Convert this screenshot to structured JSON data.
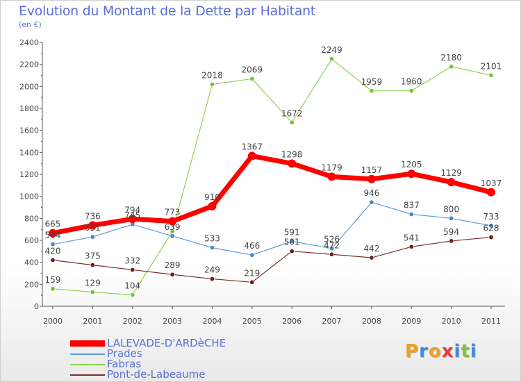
{
  "header": {
    "title": "Evolution du Montant de la Dette par Habitant",
    "unit": "(en €)"
  },
  "logo": {
    "text": "Proxiti",
    "colors": [
      "#f0a020",
      "#3a8fd8",
      "#f0a020",
      "#e83a3a",
      "#3a8fd8",
      "#88c040",
      "#3a8fd8"
    ]
  },
  "chart_data": {
    "type": "line",
    "title": "Evolution du Montant de la Dette par Habitant",
    "subtitle": "(en €)",
    "xlabel": "",
    "ylabel": "",
    "x": [
      "2000",
      "2001",
      "2002",
      "2003",
      "2004",
      "2005",
      "2006",
      "2007",
      "2008",
      "2009",
      "2010",
      "2011"
    ],
    "ylim": [
      0,
      2400
    ],
    "yticks": [
      0,
      200,
      400,
      600,
      800,
      1000,
      1200,
      1400,
      1600,
      1800,
      2000,
      2200,
      2400
    ],
    "grid": false,
    "legend_position": "bottom-left",
    "series": [
      {
        "name": "LALEVADE-D'ARDèCHE",
        "color": "#ff0000",
        "values": [
          665,
          736,
          794,
          773,
          910,
          1367,
          1298,
          1179,
          1157,
          1205,
          1129,
          1037
        ],
        "labels": [
          "665",
          "736",
          "794",
          "773",
          "910",
          "1367",
          "1298",
          "1179",
          "1157",
          "1205",
          "1129",
          "1037"
        ]
      },
      {
        "name": "Prades",
        "color": "#5b9bd5",
        "values": [
          564,
          631,
          745,
          639,
          533,
          466,
          591,
          526,
          946,
          837,
          800,
          733
        ],
        "labels": [
          "564",
          "631",
          "745",
          "639",
          "533",
          "466",
          "591",
          "526",
          "946",
          "837",
          "800",
          "733"
        ]
      },
      {
        "name": "Fabras",
        "color": "#8fd14f",
        "values": [
          159,
          129,
          104,
          680,
          2018,
          2069,
          1672,
          2249,
          1959,
          1960,
          2180,
          2101
        ],
        "labels": [
          "159",
          "129",
          "104",
          "",
          "2018",
          "2069",
          "1672",
          "2249",
          "1959",
          "1960",
          "2180",
          "2101"
        ]
      },
      {
        "name": "Pont-de-Labeaume",
        "color": "#7b2c2c",
        "values": [
          420,
          375,
          332,
          289,
          249,
          219,
          501,
          472,
          442,
          541,
          594,
          628
        ],
        "labels": [
          "420",
          "375",
          "332",
          "289",
          "249",
          "219",
          "501",
          "472",
          "442",
          "541",
          "594",
          "628"
        ]
      }
    ]
  }
}
